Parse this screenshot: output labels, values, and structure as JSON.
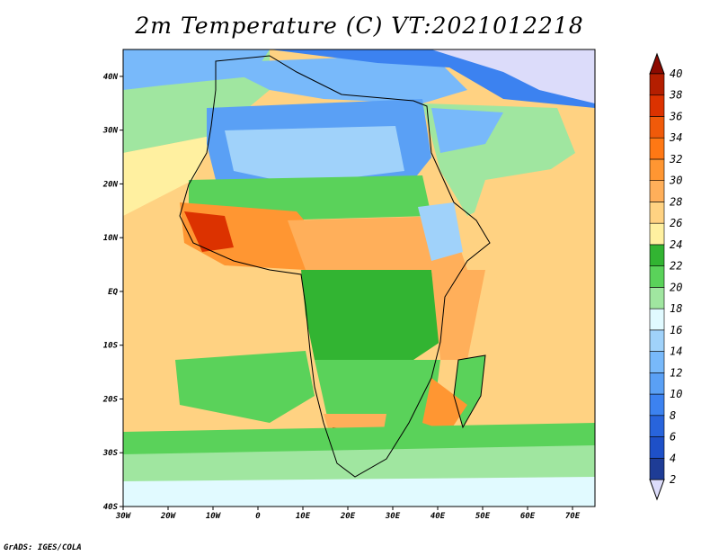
{
  "title": "2m Temperature (C) VT:2021012218",
  "credit": "GrADS: IGES/COLA",
  "map": {
    "lon_range": [
      -30,
      75
    ],
    "lat_range": [
      -40,
      45
    ],
    "lon_ticks": [
      {
        "lon": -30,
        "label": "30W"
      },
      {
        "lon": -20,
        "label": "20W"
      },
      {
        "lon": -10,
        "label": "10W"
      },
      {
        "lon": 0,
        "label": "0"
      },
      {
        "lon": 10,
        "label": "10E"
      },
      {
        "lon": 20,
        "label": "20E"
      },
      {
        "lon": 30,
        "label": "30E"
      },
      {
        "lon": 40,
        "label": "40E"
      },
      {
        "lon": 50,
        "label": "50E"
      },
      {
        "lon": 60,
        "label": "60E"
      },
      {
        "lon": 70,
        "label": "70E"
      }
    ],
    "lat_ticks": [
      {
        "lat": 40,
        "label": "40N"
      },
      {
        "lat": 30,
        "label": "30N"
      },
      {
        "lat": 20,
        "label": "20N"
      },
      {
        "lat": 10,
        "label": "10N"
      },
      {
        "lat": 0,
        "label": "EQ"
      },
      {
        "lat": -10,
        "label": "10S"
      },
      {
        "lat": -20,
        "label": "20S"
      },
      {
        "lat": -30,
        "label": "30S"
      },
      {
        "lat": -40,
        "label": "40S"
      }
    ]
  },
  "colorbar": {
    "levels": [
      {
        "value": "2",
        "color": "#dcdcfa"
      },
      {
        "value": "4",
        "color": "#1e3c96"
      },
      {
        "value": "6",
        "color": "#1e50c8"
      },
      {
        "value": "8",
        "color": "#2864dc"
      },
      {
        "value": "10",
        "color": "#3c82f0"
      },
      {
        "value": "12",
        "color": "#5aa0f5"
      },
      {
        "value": "14",
        "color": "#78b9fa"
      },
      {
        "value": "16",
        "color": "#a0d2fa"
      },
      {
        "value": "18",
        "color": "#e1faff"
      },
      {
        "value": "20",
        "color": "#a0e6a0"
      },
      {
        "value": "22",
        "color": "#5ad25a"
      },
      {
        "value": "24",
        "color": "#32b432"
      },
      {
        "value": "26",
        "color": "#fff0a0"
      },
      {
        "value": "28",
        "color": "#ffd282"
      },
      {
        "value": "30",
        "color": "#ffaf5a"
      },
      {
        "value": "32",
        "color": "#ff9632"
      },
      {
        "value": "34",
        "color": "#ff7814"
      },
      {
        "value": "36",
        "color": "#f05a0a"
      },
      {
        "value": "38",
        "color": "#dc3200"
      },
      {
        "value": "40",
        "color": "#b41e00"
      },
      {
        "value": "",
        "color": "#8c0a00"
      }
    ]
  }
}
